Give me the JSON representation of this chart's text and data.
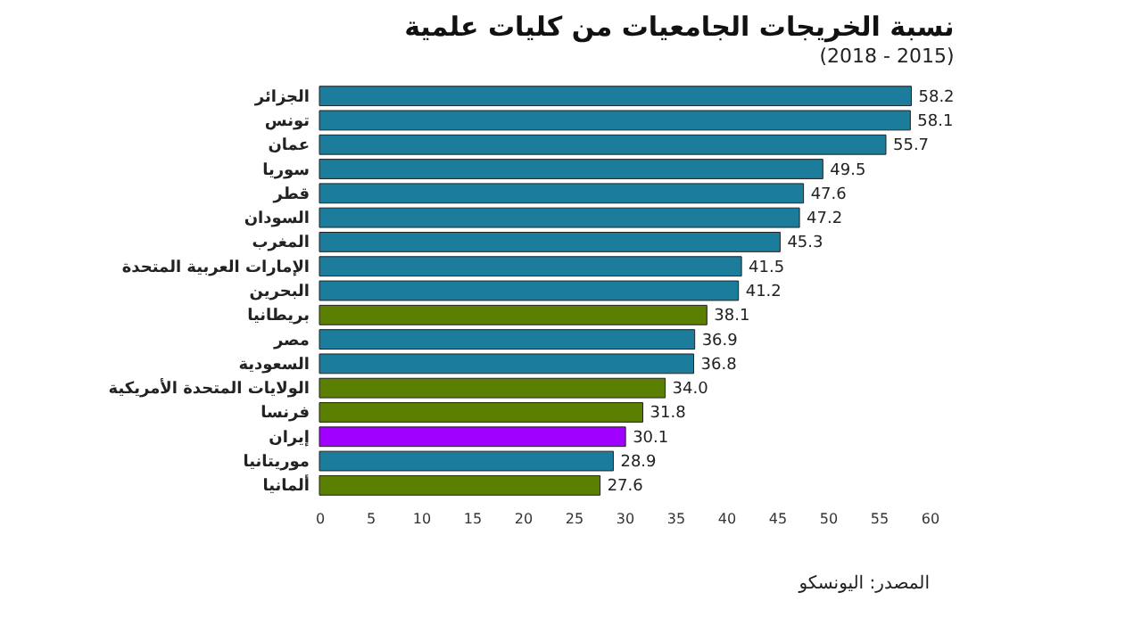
{
  "chart_data": {
    "type": "bar",
    "orientation": "horizontal",
    "title": "نسبة الخريجات الجامعيات من كليات علمية",
    "subtitle": "(2018 - 2015)",
    "categories": [
      "الجزائر",
      "تونس",
      "عمان",
      "سوريا",
      "قطر",
      "السودان",
      "المغرب",
      "الإمارات العربية المتحدة",
      "البحرين",
      "بريطانيا",
      "مصر",
      "السعودية",
      "الولايات المتحدة الأمريكية",
      "فرنسا",
      "إيران",
      "موريتانيا",
      "ألمانيا"
    ],
    "values": [
      58.2,
      58.1,
      55.7,
      49.5,
      47.6,
      47.2,
      45.3,
      41.5,
      41.2,
      38.1,
      36.9,
      36.8,
      34.0,
      31.8,
      30.1,
      28.9,
      27.6
    ],
    "value_labels": [
      "58.2",
      "58.1",
      "55.7",
      "49.5",
      "47.6",
      "47.2",
      "45.3",
      "41.5",
      "41.2",
      "38.1",
      "36.9",
      "36.8",
      "34.0",
      "31.8",
      "30.1",
      "28.9",
      "27.6"
    ],
    "colors": [
      "#1c7c9c",
      "#1c7c9c",
      "#1c7c9c",
      "#1c7c9c",
      "#1c7c9c",
      "#1c7c9c",
      "#1c7c9c",
      "#1c7c9c",
      "#1c7c9c",
      "#5b7f00",
      "#1c7c9c",
      "#1c7c9c",
      "#5b7f00",
      "#5b7f00",
      "#a000ff",
      "#1c7c9c",
      "#5b7f00"
    ],
    "xlim": [
      0,
      60
    ],
    "xticks": [
      0,
      5,
      10,
      15,
      20,
      25,
      30,
      35,
      40,
      45,
      50,
      55,
      60
    ],
    "grid": false,
    "legend": false,
    "annotations": [
      "المصدر: اليونسكو"
    ]
  }
}
